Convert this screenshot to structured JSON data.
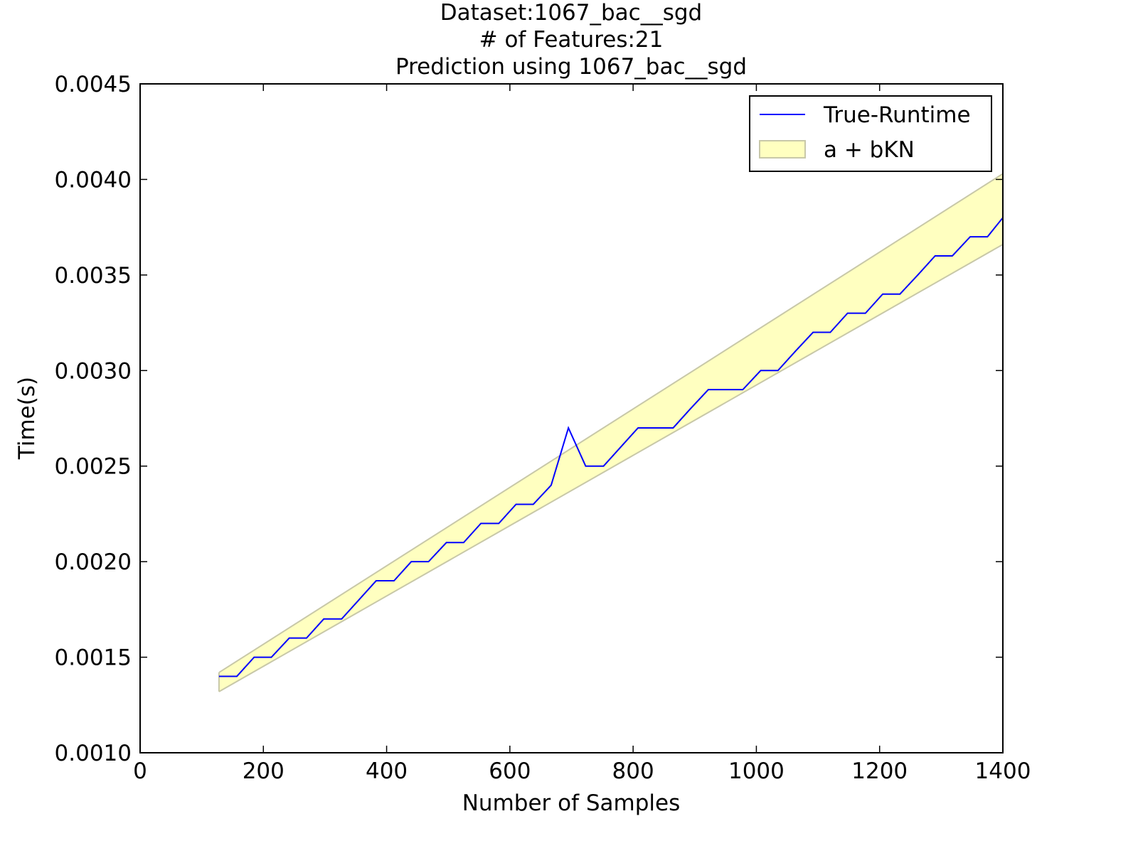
{
  "chart_data": {
    "type": "line",
    "title_lines": [
      "Dataset:1067_bac__sgd",
      "# of Features:21",
      "Prediction using 1067_bac__sgd"
    ],
    "xlabel": "Number of Samples",
    "ylabel": "Time(s)",
    "xlim": [
      0,
      1400
    ],
    "ylim": [
      0.001,
      0.0045
    ],
    "x_ticks": [
      0,
      200,
      400,
      600,
      800,
      1000,
      1200,
      1400
    ],
    "x_tick_labels": [
      "0",
      "200",
      "400",
      "600",
      "800",
      "1000",
      "1200",
      "1400"
    ],
    "y_ticks": [
      0.001,
      0.0015,
      0.002,
      0.0025,
      0.003,
      0.0035,
      0.004,
      0.0045
    ],
    "y_tick_labels": [
      "0.0010",
      "0.0015",
      "0.0020",
      "0.0025",
      "0.0030",
      "0.0035",
      "0.0040",
      "0.0045"
    ],
    "grid": false,
    "legend_position": "top-right",
    "series": [
      {
        "name": "True-Runtime",
        "kind": "line",
        "color": "#0000ff",
        "x": [
          128,
          157,
          185,
          213,
          242,
          270,
          298,
          327,
          355,
          383,
          412,
          440,
          468,
          497,
          525,
          553,
          582,
          610,
          638,
          667,
          695,
          723,
          752,
          780,
          808,
          837,
          865,
          893,
          922,
          950,
          978,
          1007,
          1035,
          1063,
          1092,
          1120,
          1148,
          1177,
          1205,
          1233,
          1262,
          1290,
          1318,
          1347,
          1375,
          1400
        ],
        "y": [
          0.0014,
          0.0014,
          0.0015,
          0.0015,
          0.0016,
          0.0016,
          0.0017,
          0.0017,
          0.0018,
          0.0019,
          0.0019,
          0.002,
          0.002,
          0.0021,
          0.0021,
          0.0022,
          0.0022,
          0.0023,
          0.0023,
          0.0024,
          0.0027,
          0.0025,
          0.0025,
          0.0026,
          0.0027,
          0.0027,
          0.0027,
          0.0028,
          0.0029,
          0.0029,
          0.0029,
          0.003,
          0.003,
          0.0031,
          0.0032,
          0.0032,
          0.0033,
          0.0033,
          0.0034,
          0.0034,
          0.0035,
          0.0036,
          0.0036,
          0.0037,
          0.0037,
          0.0038
        ]
      },
      {
        "name": "a + bKN",
        "kind": "band",
        "fill_color": "#ffffc0",
        "edge_color": "#c8c8a8",
        "x": [
          128,
          1400
        ],
        "upper": [
          0.00142,
          0.00403
        ],
        "lower": [
          0.00132,
          0.00366
        ]
      }
    ]
  }
}
